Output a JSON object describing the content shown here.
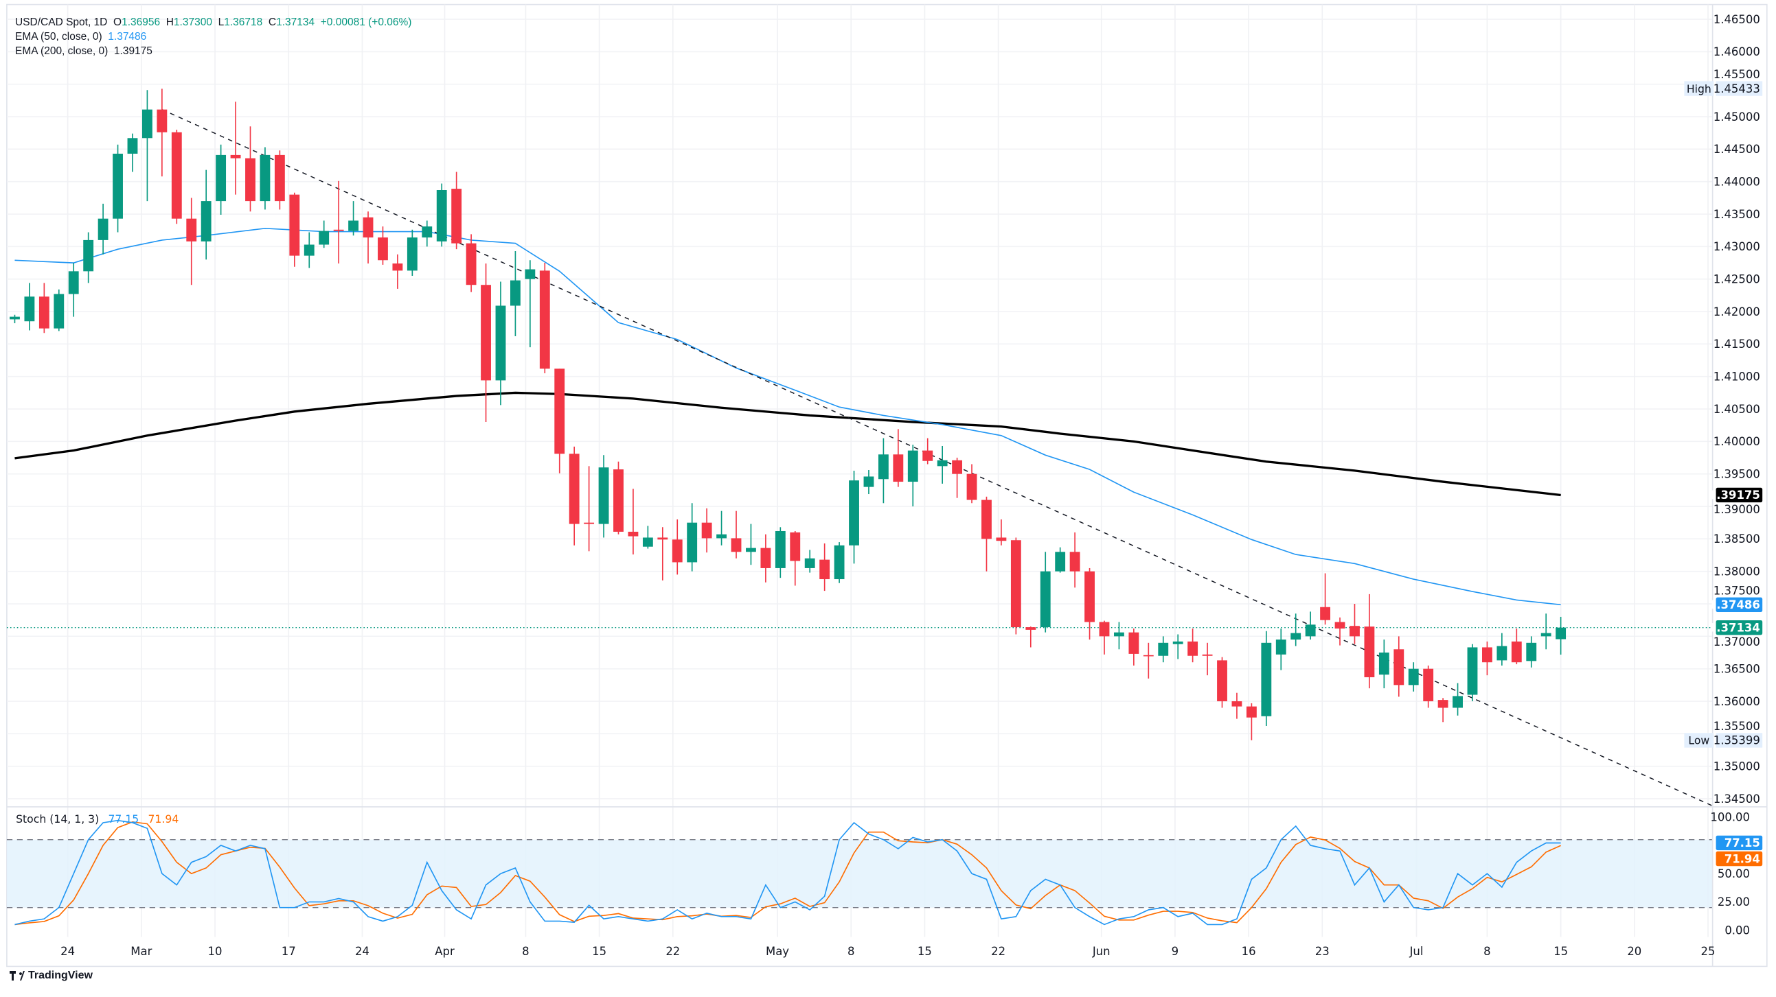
{
  "legend": {
    "symbol": "USD/CAD Spot, 1D",
    "o_label": "O",
    "open": "1.36956",
    "h_label": "H",
    "high": "1.37300",
    "l_label": "L",
    "low": "1.36718",
    "c_label": "C",
    "close": "1.37134",
    "change": "+0.00081 (+0.06%)",
    "ema50_label": "EMA (50, close, 0)",
    "ema50_value": "1.37486",
    "ema200_label": "EMA (200, close, 0)",
    "ema200_value": "1.39175"
  },
  "branding": {
    "logo_text": "TradingView"
  },
  "colors": {
    "up": "#089981",
    "down": "#f23645",
    "ema50": "#2196f3",
    "ema200": "#000000",
    "stoch_k": "#2196f3",
    "stoch_d": "#ff6d00",
    "band": "#e3f2fd"
  },
  "chart_data": {
    "type": "candlestick",
    "title": "USD/CAD Spot, 1D",
    "ylim": [
      1.3425,
      1.4675
    ],
    "y_ticks": [
      "1.46500",
      "1.46000",
      "1.45500",
      "1.45000",
      "1.44500",
      "1.44000",
      "1.43500",
      "1.43000",
      "1.42500",
      "1.42000",
      "1.41500",
      "1.41000",
      "1.40500",
      "1.40000",
      "1.39500",
      "1.39000",
      "1.38500",
      "1.38000",
      "1.37500",
      "1.37000",
      "1.36500",
      "1.36000",
      "1.35500",
      "1.35000",
      "1.34500"
    ],
    "x_ticks": [
      {
        "label": "24",
        "idx": 3.6
      },
      {
        "label": "Mar",
        "idx": 8.6
      },
      {
        "label": "10",
        "idx": 13.6
      },
      {
        "label": "17",
        "idx": 18.6
      },
      {
        "label": "24",
        "idx": 23.6
      },
      {
        "label": "Apr",
        "idx": 29.2
      },
      {
        "label": "8",
        "idx": 34.7
      },
      {
        "label": "15",
        "idx": 39.7
      },
      {
        "label": "22",
        "idx": 44.7
      },
      {
        "label": "May",
        "idx": 51.8
      },
      {
        "label": "8",
        "idx": 56.8
      },
      {
        "label": "15",
        "idx": 61.8
      },
      {
        "label": "22",
        "idx": 66.8
      },
      {
        "label": "Jun",
        "idx": 73.8
      },
      {
        "label": "9",
        "idx": 78.8
      },
      {
        "label": "16",
        "idx": 83.8
      },
      {
        "label": "23",
        "idx": 88.8
      },
      {
        "label": "Jul",
        "idx": 95.2
      },
      {
        "label": "8",
        "idx": 100
      },
      {
        "label": "15",
        "idx": 105
      },
      {
        "label": "20",
        "idx": 110
      },
      {
        "label": "25",
        "idx": 115
      }
    ],
    "ohlc": [
      [
        1.4188,
        1.4195,
        1.4182,
        1.4192
      ],
      [
        1.4185,
        1.4244,
        1.4171,
        1.4223
      ],
      [
        1.4223,
        1.4244,
        1.4167,
        1.4174
      ],
      [
        1.4174,
        1.4234,
        1.417,
        1.4227
      ],
      [
        1.4227,
        1.4275,
        1.4192,
        1.4262
      ],
      [
        1.4262,
        1.4322,
        1.4244,
        1.431
      ],
      [
        1.431,
        1.4366,
        1.4288,
        1.4343
      ],
      [
        1.4343,
        1.4457,
        1.4322,
        1.4443
      ],
      [
        1.4443,
        1.4474,
        1.4415,
        1.4467
      ],
      [
        1.4467,
        1.4541,
        1.437,
        1.4511
      ],
      [
        1.4511,
        1.4543,
        1.4408,
        1.4476
      ],
      [
        1.4476,
        1.448,
        1.4335,
        1.4343
      ],
      [
        1.4343,
        1.4375,
        1.4241,
        1.4308
      ],
      [
        1.4308,
        1.4418,
        1.428,
        1.437
      ],
      [
        1.437,
        1.4457,
        1.4349,
        1.4441
      ],
      [
        1.4441,
        1.4523,
        1.438,
        1.4436
      ],
      [
        1.4436,
        1.4485,
        1.4354,
        1.437
      ],
      [
        1.437,
        1.4453,
        1.4357,
        1.4441
      ],
      [
        1.4441,
        1.4448,
        1.4357,
        1.437
      ],
      [
        1.438,
        1.4383,
        1.4269,
        1.4286
      ],
      [
        1.4286,
        1.4322,
        1.4267,
        1.4303
      ],
      [
        1.4303,
        1.434,
        1.4298,
        1.4324
      ],
      [
        1.4326,
        1.4401,
        1.4274,
        1.4324
      ],
      [
        1.4324,
        1.437,
        1.4317,
        1.434
      ],
      [
        1.4345,
        1.4354,
        1.4274,
        1.4314
      ],
      [
        1.4314,
        1.4331,
        1.4272,
        1.4279
      ],
      [
        1.4274,
        1.4288,
        1.4235,
        1.4263
      ],
      [
        1.4263,
        1.4326,
        1.4255,
        1.4314
      ],
      [
        1.4314,
        1.434,
        1.43,
        1.4331
      ],
      [
        1.4308,
        1.4397,
        1.43,
        1.4387
      ],
      [
        1.4389,
        1.4415,
        1.4296,
        1.4305
      ],
      [
        1.4305,
        1.4319,
        1.423,
        1.4241
      ],
      [
        1.4241,
        1.4274,
        1.403,
        1.4094
      ],
      [
        1.4094,
        1.4246,
        1.4056,
        1.4209
      ],
      [
        1.4209,
        1.4293,
        1.4162,
        1.4248
      ],
      [
        1.425,
        1.4279,
        1.4145,
        1.4265
      ],
      [
        1.4263,
        1.4275,
        1.4105,
        1.4112
      ],
      [
        1.4112,
        1.4112,
        1.3951,
        1.3981
      ],
      [
        1.3981,
        1.3992,
        1.384,
        1.3873
      ],
      [
        1.3875,
        1.3962,
        1.3831,
        1.3873
      ],
      [
        1.3873,
        1.3979,
        1.3852,
        1.396
      ],
      [
        1.3957,
        1.3969,
        1.3857,
        1.3861
      ],
      [
        1.3861,
        1.3927,
        1.3826,
        1.3854
      ],
      [
        1.3838,
        1.387,
        1.3835,
        1.3852
      ],
      [
        1.3852,
        1.3868,
        1.3786,
        1.3849
      ],
      [
        1.3849,
        1.388,
        1.3795,
        1.3814
      ],
      [
        1.3814,
        1.3905,
        1.38,
        1.3875
      ],
      [
        1.3875,
        1.3897,
        1.3829,
        1.3851
      ],
      [
        1.3851,
        1.3893,
        1.384,
        1.3857
      ],
      [
        1.3851,
        1.3893,
        1.382,
        1.383
      ],
      [
        1.383,
        1.3873,
        1.381,
        1.3836
      ],
      [
        1.3836,
        1.3857,
        1.3783,
        1.3805
      ],
      [
        1.3805,
        1.3868,
        1.379,
        1.3862
      ],
      [
        1.386,
        1.3862,
        1.3778,
        1.3816
      ],
      [
        1.3805,
        1.3833,
        1.3798,
        1.382
      ],
      [
        1.3818,
        1.3843,
        1.377,
        1.3788
      ],
      [
        1.3788,
        1.3845,
        1.3782,
        1.384
      ],
      [
        1.384,
        1.3955,
        1.3812,
        1.394
      ],
      [
        1.393,
        1.3956,
        1.3919,
        1.3946
      ],
      [
        1.3942,
        1.4005,
        1.3905,
        1.398
      ],
      [
        1.398,
        1.4019,
        1.393,
        1.3938
      ],
      [
        1.3938,
        1.3995,
        1.39,
        1.3986
      ],
      [
        1.3986,
        1.4005,
        1.3965,
        1.397
      ],
      [
        1.3962,
        1.3993,
        1.3935,
        1.3971
      ],
      [
        1.3971,
        1.3975,
        1.3913,
        1.395
      ],
      [
        1.395,
        1.3965,
        1.3905,
        1.391
      ],
      [
        1.391,
        1.3915,
        1.38,
        1.385
      ],
      [
        1.3852,
        1.388,
        1.384,
        1.3847
      ],
      [
        1.3848,
        1.3852,
        1.3703,
        1.3714
      ],
      [
        1.3714,
        1.3715,
        1.3683,
        1.371
      ],
      [
        1.3714,
        1.383,
        1.3706,
        1.38
      ],
      [
        1.38,
        1.3837,
        1.3798,
        1.383
      ],
      [
        1.383,
        1.386,
        1.3775,
        1.38
      ],
      [
        1.38,
        1.3805,
        1.3695,
        1.3722
      ],
      [
        1.3722,
        1.3724,
        1.3672,
        1.37
      ],
      [
        1.37,
        1.3722,
        1.368,
        1.3706
      ],
      [
        1.3706,
        1.3712,
        1.3655,
        1.3673
      ],
      [
        1.3671,
        1.369,
        1.3635,
        1.367
      ],
      [
        1.367,
        1.37,
        1.366,
        1.369
      ],
      [
        1.3688,
        1.3703,
        1.3665,
        1.3692
      ],
      [
        1.3692,
        1.3712,
        1.366,
        1.367
      ],
      [
        1.3672,
        1.369,
        1.364,
        1.367
      ],
      [
        1.3663,
        1.3668,
        1.359,
        1.36
      ],
      [
        1.36,
        1.3613,
        1.3573,
        1.3592
      ],
      [
        1.3592,
        1.3597,
        1.354,
        1.3575
      ],
      [
        1.3577,
        1.3708,
        1.3562,
        1.369
      ],
      [
        1.3672,
        1.3712,
        1.3648,
        1.3695
      ],
      [
        1.3695,
        1.3735,
        1.3685,
        1.3705
      ],
      [
        1.37,
        1.3738,
        1.3695,
        1.3718
      ],
      [
        1.3745,
        1.3797,
        1.3718,
        1.3725
      ],
      [
        1.3722,
        1.3729,
        1.3686,
        1.3712
      ],
      [
        1.3716,
        1.375,
        1.3688,
        1.37
      ],
      [
        1.3715,
        1.3765,
        1.362,
        1.3637
      ],
      [
        1.3641,
        1.3695,
        1.362,
        1.3675
      ],
      [
        1.368,
        1.37,
        1.3607,
        1.3625
      ],
      [
        1.3625,
        1.366,
        1.3615,
        1.365
      ],
      [
        1.365,
        1.3655,
        1.359,
        1.36
      ],
      [
        1.3602,
        1.3605,
        1.3568,
        1.359
      ],
      [
        1.359,
        1.3628,
        1.3578,
        1.3608
      ],
      [
        1.361,
        1.3688,
        1.36,
        1.3683
      ],
      [
        1.3683,
        1.3692,
        1.364,
        1.366
      ],
      [
        1.3663,
        1.3705,
        1.3655,
        1.3685
      ],
      [
        1.3692,
        1.3712,
        1.3657,
        1.366
      ],
      [
        1.3662,
        1.37,
        1.3652,
        1.369
      ],
      [
        1.37,
        1.3735,
        1.368,
        1.3705
      ],
      [
        1.36956,
        1.373,
        1.36718,
        1.37134
      ]
    ],
    "ema50": [
      [
        0,
        1.4279
      ],
      [
        4,
        1.4275
      ],
      [
        7,
        1.4296
      ],
      [
        10,
        1.431
      ],
      [
        13,
        1.4317
      ],
      [
        17,
        1.4328
      ],
      [
        21,
        1.4323
      ],
      [
        24,
        1.4323
      ],
      [
        28,
        1.4323
      ],
      [
        31,
        1.431
      ],
      [
        34,
        1.4305
      ],
      [
        37,
        1.4262
      ],
      [
        41,
        1.4183
      ],
      [
        45,
        1.4157
      ],
      [
        49,
        1.4113
      ],
      [
        53,
        1.4079
      ],
      [
        56,
        1.4053
      ],
      [
        59,
        1.404
      ],
      [
        63,
        1.4026
      ],
      [
        67,
        1.4009
      ],
      [
        70,
        1.3979
      ],
      [
        73,
        1.3957
      ],
      [
        76,
        1.3922
      ],
      [
        80,
        1.3887
      ],
      [
        84,
        1.3849
      ],
      [
        87,
        1.3826
      ],
      [
        91,
        1.3812
      ],
      [
        95,
        1.3788
      ],
      [
        99,
        1.3769
      ],
      [
        102,
        1.3756
      ],
      [
        105,
        1.37486
      ]
    ],
    "ema200": [
      [
        0,
        1.3974
      ],
      [
        4,
        1.3986
      ],
      [
        9,
        1.4009
      ],
      [
        15,
        1.4032
      ],
      [
        19,
        1.4046
      ],
      [
        24,
        1.4058
      ],
      [
        30,
        1.407
      ],
      [
        34,
        1.4075
      ],
      [
        37,
        1.4073
      ],
      [
        42,
        1.4066
      ],
      [
        48,
        1.4052
      ],
      [
        54,
        1.404
      ],
      [
        61,
        1.403
      ],
      [
        67,
        1.4023
      ],
      [
        71,
        1.4012
      ],
      [
        76,
        1.4
      ],
      [
        80,
        1.3986
      ],
      [
        85,
        1.3969
      ],
      [
        91,
        1.3955
      ],
      [
        97,
        1.3938
      ],
      [
        105,
        1.39175
      ]
    ],
    "trendline": [
      [
        10,
        1.4511
      ],
      [
        115.3,
        1.3439
      ]
    ],
    "last_price": 1.37134,
    "high": {
      "label": "High",
      "value": "1.45433"
    },
    "low": {
      "label": "Low",
      "value": "1.35399"
    },
    "price_tags": {
      "ema200": "1.39175",
      "ema50": "1.37486",
      "last": "1.37134"
    },
    "stoch": {
      "label": "Stoch (14, 1, 3)",
      "k_value": "77.15",
      "d_value": "71.94",
      "levels": [
        20,
        80
      ],
      "y_ticks": [
        "100.00",
        "50.00",
        "25.00",
        "0.00"
      ],
      "k": [
        5,
        8,
        10,
        20,
        50,
        80,
        95,
        97,
        95,
        90,
        50,
        40,
        60,
        65,
        75,
        70,
        75,
        72,
        20,
        20,
        25,
        25,
        28,
        25,
        12,
        8,
        12,
        22,
        60,
        35,
        18,
        10,
        40,
        50,
        55,
        25,
        8,
        8,
        7,
        22,
        10,
        12,
        10,
        8,
        10,
        18,
        10,
        15,
        12,
        12,
        10,
        40,
        20,
        25,
        18,
        30,
        80,
        95,
        85,
        80,
        72,
        82,
        78,
        80,
        70,
        50,
        45,
        10,
        12,
        35,
        45,
        40,
        20,
        12,
        5,
        10,
        12,
        18,
        20,
        12,
        15,
        5,
        5,
        10,
        45,
        55,
        80,
        92,
        75,
        72,
        70,
        40,
        55,
        25,
        40,
        20,
        18,
        20,
        50,
        40,
        50,
        38,
        60,
        70,
        77.15,
        77.15
      ]
    }
  }
}
